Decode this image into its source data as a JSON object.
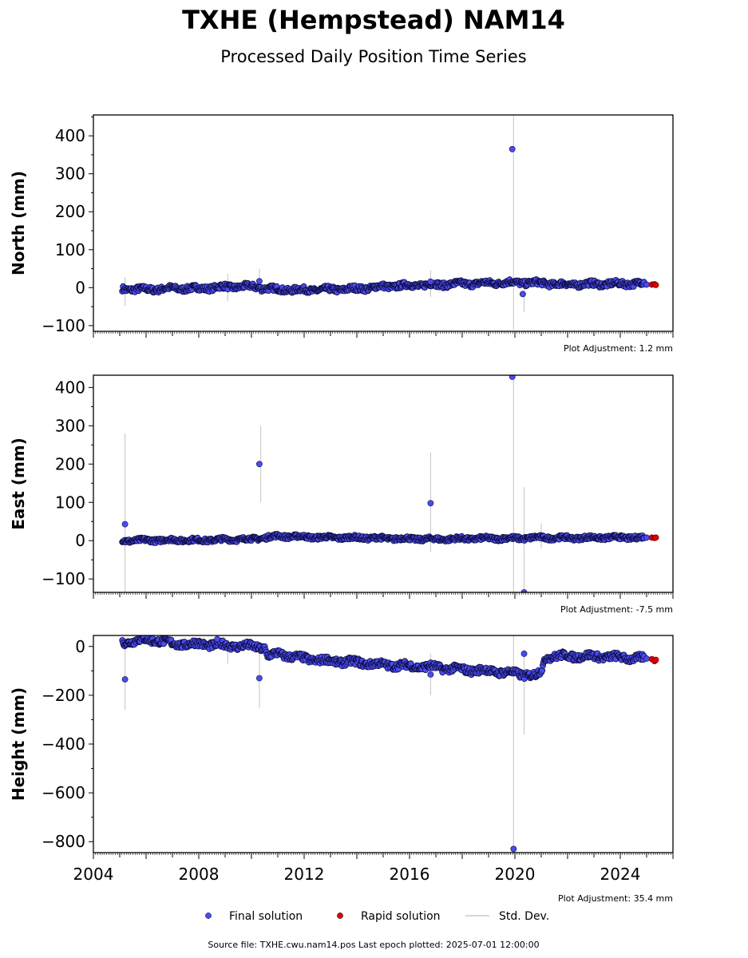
{
  "chart_data": {
    "type": "scatter",
    "title": "TXHE (Hempstead) NAM14",
    "subtitle": "Processed Daily Position Time Series",
    "x_ticks": [
      "2004",
      "2008",
      "2012",
      "2016",
      "2020",
      "2024"
    ],
    "xlim": [
      2004,
      2026
    ],
    "panels": [
      {
        "name": "north",
        "ylabel": "North (mm)",
        "ylim": [
          -115,
          455
        ],
        "y_ticks": [
          {
            "value": -100,
            "label": "−100"
          },
          {
            "value": 0,
            "label": "0"
          },
          {
            "value": 100,
            "label": "100"
          },
          {
            "value": 200,
            "label": "200"
          },
          {
            "value": 300,
            "label": "300"
          },
          {
            "value": 400,
            "label": "400"
          }
        ],
        "adjustment": "Plot Adjustment: 1.2 mm",
        "trend": [
          [
            2005.1,
            -3
          ],
          [
            2006,
            -5
          ],
          [
            2007,
            -2
          ],
          [
            2008,
            -2
          ],
          [
            2009,
            2
          ],
          [
            2010,
            3
          ],
          [
            2011,
            -5
          ],
          [
            2012,
            -6
          ],
          [
            2013,
            -5
          ],
          [
            2014,
            -3
          ],
          [
            2015,
            3
          ],
          [
            2016,
            6
          ],
          [
            2017,
            8
          ],
          [
            2018,
            10
          ],
          [
            2019,
            12
          ],
          [
            2020,
            14
          ],
          [
            2021,
            12
          ],
          [
            2022,
            8
          ],
          [
            2023,
            10
          ],
          [
            2024,
            10
          ],
          [
            2024.9,
            12
          ]
        ],
        "band": 7,
        "outliers": [
          [
            2010.3,
            17
          ],
          [
            2019.9,
            365
          ],
          [
            2020.3,
            -17
          ],
          [
            2025,
            8
          ],
          [
            2016.8,
            16
          ]
        ],
        "errbars": [
          [
            2005.2,
            -48,
            28
          ],
          [
            2009.1,
            -35,
            37
          ],
          [
            2010.3,
            -20,
            50
          ],
          [
            2016.8,
            -25,
            45
          ],
          [
            2019.95,
            -110,
            455
          ],
          [
            2020.35,
            -65,
            10
          ]
        ],
        "rapid": [
          [
            2025.2,
            8
          ],
          [
            2025.3,
            9
          ],
          [
            2025.35,
            7
          ]
        ]
      },
      {
        "name": "east",
        "ylabel": "East (mm)",
        "ylim": [
          -135,
          432
        ],
        "y_ticks": [
          {
            "value": -100,
            "label": "−100"
          },
          {
            "value": 0,
            "label": "0"
          },
          {
            "value": 100,
            "label": "100"
          },
          {
            "value": 200,
            "label": "200"
          },
          {
            "value": 300,
            "label": "300"
          },
          {
            "value": 400,
            "label": "400"
          }
        ],
        "adjustment": "Plot Adjustment: -7.5 mm",
        "trend": [
          [
            2005.1,
            0
          ],
          [
            2006,
            1
          ],
          [
            2007,
            2
          ],
          [
            2008,
            1
          ],
          [
            2009,
            3
          ],
          [
            2010,
            4
          ],
          [
            2011,
            12
          ],
          [
            2012,
            10
          ],
          [
            2013,
            8
          ],
          [
            2014,
            8
          ],
          [
            2015,
            6
          ],
          [
            2016,
            5
          ],
          [
            2017,
            4
          ],
          [
            2018,
            5
          ],
          [
            2019,
            6
          ],
          [
            2020,
            6
          ],
          [
            2021,
            8
          ],
          [
            2022,
            7
          ],
          [
            2023,
            8
          ],
          [
            2024,
            8
          ],
          [
            2024.9,
            8
          ]
        ],
        "band": 5,
        "outliers": [
          [
            2005.2,
            43
          ],
          [
            2010.3,
            200
          ],
          [
            2016.8,
            98
          ],
          [
            2019.9,
            428
          ],
          [
            2020.35,
            -135
          ],
          [
            2025,
            8
          ]
        ],
        "errbars": [
          [
            2005.2,
            -135,
            280
          ],
          [
            2010.35,
            100,
            300
          ],
          [
            2016.8,
            -30,
            230
          ],
          [
            2019.95,
            -135,
            432
          ],
          [
            2020.35,
            -135,
            140
          ],
          [
            2021,
            -20,
            45
          ]
        ],
        "rapid": [
          [
            2025.2,
            8
          ],
          [
            2025.3,
            7
          ],
          [
            2025.35,
            8
          ]
        ]
      },
      {
        "name": "height",
        "ylabel": "Height (mm)",
        "ylim": [
          -845,
          45
        ],
        "y_ticks": [
          {
            "value": -800,
            "label": "−800"
          },
          {
            "value": -600,
            "label": "−600"
          },
          {
            "value": -400,
            "label": "−400"
          },
          {
            "value": -200,
            "label": "−200"
          },
          {
            "value": 0,
            "label": "0"
          }
        ],
        "adjustment": "Plot Adjustment: 35.4 mm",
        "trend": [
          [
            2005.1,
            15
          ],
          [
            2005.6,
            25
          ],
          [
            2006,
            27
          ],
          [
            2006.5,
            25
          ],
          [
            2007,
            10
          ],
          [
            2008,
            10
          ],
          [
            2009,
            5
          ],
          [
            2010,
            0
          ],
          [
            2010.5,
            -5
          ],
          [
            2010.6,
            -40
          ],
          [
            2011,
            -30
          ],
          [
            2012,
            -50
          ],
          [
            2013,
            -60
          ],
          [
            2014,
            -65
          ],
          [
            2015,
            -75
          ],
          [
            2016,
            -80
          ],
          [
            2017,
            -85
          ],
          [
            2018,
            -95
          ],
          [
            2019,
            -100
          ],
          [
            2020,
            -110
          ],
          [
            2020.8,
            -120
          ],
          [
            2021,
            -100
          ],
          [
            2021.2,
            -40
          ],
          [
            2022,
            -40
          ],
          [
            2023,
            -40
          ],
          [
            2024,
            -45
          ],
          [
            2024.9,
            -50
          ]
        ],
        "band": 14,
        "outliers": [
          [
            2005.2,
            -135
          ],
          [
            2010.3,
            -130
          ],
          [
            2016.8,
            -115
          ],
          [
            2019.95,
            -830
          ],
          [
            2020.35,
            -30
          ],
          [
            2008.7,
            30
          ],
          [
            2025,
            -50
          ]
        ],
        "errbars": [
          [
            2005.2,
            -260,
            30
          ],
          [
            2009.1,
            -70,
            20
          ],
          [
            2010.3,
            -250,
            5
          ],
          [
            2016.8,
            -200,
            -30
          ],
          [
            2019.95,
            -845,
            45
          ],
          [
            2020.35,
            -360,
            -10
          ]
        ],
        "rapid": [
          [
            2025.2,
            -52
          ],
          [
            2025.3,
            -60
          ],
          [
            2025.35,
            -55
          ]
        ]
      }
    ],
    "legend": [
      {
        "label": "Final solution",
        "kind": "marker",
        "color": "#4b4bf0"
      },
      {
        "label": "Rapid solution",
        "kind": "marker",
        "color": "#dd0000"
      },
      {
        "label": "Std. Dev.",
        "kind": "line",
        "color": "#cccccc"
      }
    ],
    "legend_position": "bottom-center",
    "source": "Source file: TXHE.cwu.nam14.pos  Last epoch plotted: 2025-07-01 12:00:00",
    "colors": {
      "final": "#4b4bf0",
      "final_edge": "#0b0b3a",
      "rapid": "#dd0000",
      "std": "#cccccc"
    }
  }
}
